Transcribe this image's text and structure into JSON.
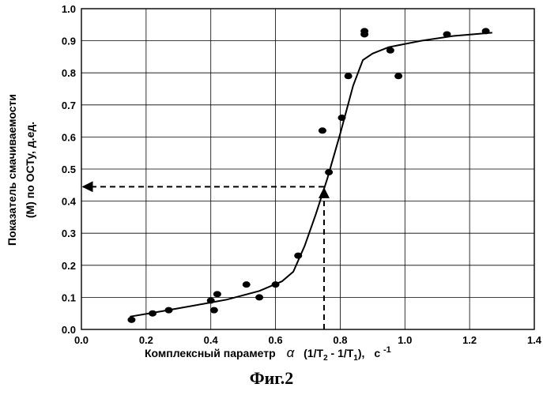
{
  "chart_data": {
    "type": "scatter",
    "title": "",
    "xlabel": {
      "prefix": "Комплексный  параметр",
      "alpha": "α",
      "open": "(1/T",
      "sub2": "2",
      "mid": " - 1/T",
      "sub1": "1",
      "close": "),",
      "unit": "с",
      "exp": "-1"
    },
    "ylabel_line1": "Показатель  смачиваемости",
    "ylabel_line2": "(М) по ОСТу,  д.ед.",
    "xlim": [
      0.0,
      1.4
    ],
    "ylim": [
      0.0,
      1.0
    ],
    "x_ticks": [
      "0.0",
      "0.2",
      "0.4",
      "0.6",
      "0.8",
      "1.0",
      "1.2",
      "1.4"
    ],
    "y_ticks": [
      "0.0",
      "0.1",
      "0.2",
      "0.3",
      "0.4",
      "0.5",
      "0.6",
      "0.7",
      "0.8",
      "0.9",
      "1.0"
    ],
    "grid": true,
    "series": [
      {
        "name": "measured",
        "type": "scatter",
        "points": [
          {
            "x": 0.155,
            "y": 0.03
          },
          {
            "x": 0.22,
            "y": 0.05
          },
          {
            "x": 0.27,
            "y": 0.06
          },
          {
            "x": 0.4,
            "y": 0.09
          },
          {
            "x": 0.41,
            "y": 0.06
          },
          {
            "x": 0.42,
            "y": 0.11
          },
          {
            "x": 0.51,
            "y": 0.14
          },
          {
            "x": 0.55,
            "y": 0.1
          },
          {
            "x": 0.6,
            "y": 0.14
          },
          {
            "x": 0.67,
            "y": 0.23
          },
          {
            "x": 0.745,
            "y": 0.62
          },
          {
            "x": 0.765,
            "y": 0.49
          },
          {
            "x": 0.805,
            "y": 0.66
          },
          {
            "x": 0.825,
            "y": 0.79
          },
          {
            "x": 0.875,
            "y": 0.92
          },
          {
            "x": 0.875,
            "y": 0.93
          },
          {
            "x": 0.955,
            "y": 0.87
          },
          {
            "x": 0.98,
            "y": 0.79
          },
          {
            "x": 1.13,
            "y": 0.92
          },
          {
            "x": 1.25,
            "y": 0.93
          }
        ]
      },
      {
        "name": "fitted curve",
        "type": "line",
        "points": [
          {
            "x": 0.15,
            "y": 0.04
          },
          {
            "x": 0.25,
            "y": 0.057
          },
          {
            "x": 0.35,
            "y": 0.075
          },
          {
            "x": 0.45,
            "y": 0.093
          },
          {
            "x": 0.55,
            "y": 0.12
          },
          {
            "x": 0.62,
            "y": 0.15
          },
          {
            "x": 0.655,
            "y": 0.18
          },
          {
            "x": 0.69,
            "y": 0.26
          },
          {
            "x": 0.725,
            "y": 0.36
          },
          {
            "x": 0.76,
            "y": 0.47
          },
          {
            "x": 0.8,
            "y": 0.61
          },
          {
            "x": 0.84,
            "y": 0.76
          },
          {
            "x": 0.87,
            "y": 0.84
          },
          {
            "x": 0.9,
            "y": 0.86
          },
          {
            "x": 0.95,
            "y": 0.88
          },
          {
            "x": 1.05,
            "y": 0.9
          },
          {
            "x": 1.15,
            "y": 0.915
          },
          {
            "x": 1.27,
            "y": 0.925
          }
        ]
      }
    ],
    "annotation": {
      "type": "dashed-arrow-lookup",
      "x": 0.75,
      "y": 0.445,
      "x_start": 0.0
    }
  },
  "caption": "Фиг.2"
}
